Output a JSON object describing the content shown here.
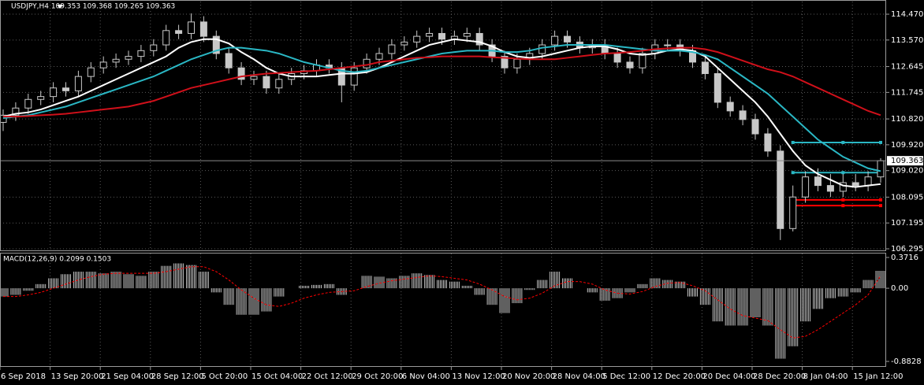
{
  "chart_data": [
    {
      "type": "candlestick",
      "title": "USDJPY,H4  109.353 109.368 109.265 109.363",
      "categories": [
        "6 Sep 2018",
        null,
        null,
        null,
        "13 Sep 20:00",
        null,
        null,
        null,
        "21 Sep 04:00",
        null,
        null,
        null,
        "28 Sep 12:00",
        null,
        null,
        null,
        "5 Oct 20:00",
        null,
        null,
        null,
        "15 Oct 04:00",
        null,
        null,
        null,
        "22 Oct 12:00",
        null,
        null,
        null,
        "29 Oct 20:00",
        null,
        null,
        null,
        "6 Nov 04:00",
        null,
        null,
        null,
        "13 Nov 12:00",
        null,
        null,
        null,
        "20 Nov 20:00",
        null,
        null,
        null,
        "28 Nov 04:00",
        null,
        null,
        null,
        "5 Dec 12:00",
        null,
        null,
        null,
        "12 Dec 20:00",
        null,
        null,
        null,
        "20 Dec 04:00",
        null,
        null,
        null,
        "28 Dec 20:00",
        null,
        null,
        null,
        "8 Jan 04:00",
        null,
        null,
        null,
        "15 Jan 12:00",
        null,
        null
      ],
      "open": [
        110.7,
        110.95,
        111.2,
        111.5,
        111.6,
        111.9,
        111.8,
        112.3,
        112.6,
        112.8,
        112.9,
        113.0,
        113.2,
        113.4,
        113.9,
        113.8,
        114.2,
        113.7,
        113.1,
        112.6,
        112.2,
        112.3,
        111.9,
        112.2,
        112.4,
        112.5,
        112.7,
        112.6,
        112.0,
        112.6,
        112.9,
        113.1,
        113.4,
        113.5,
        113.7,
        113.8,
        113.6,
        113.7,
        113.8,
        113.4,
        113.0,
        112.6,
        112.9,
        113.1,
        113.4,
        113.7,
        113.5,
        113.3,
        113.4,
        113.1,
        112.8,
        112.6,
        113.1,
        113.4,
        113.4,
        113.2,
        112.8,
        112.4,
        111.4,
        111.1,
        110.8,
        110.3,
        109.7,
        107.0,
        108.1,
        108.8,
        108.5,
        108.3,
        108.6,
        108.5,
        108.8
      ],
      "high": [
        111.15,
        111.4,
        111.7,
        111.8,
        112.1,
        112.1,
        112.5,
        112.8,
        113.0,
        113.1,
        113.2,
        113.4,
        113.6,
        114.1,
        114.1,
        114.5,
        114.4,
        113.9,
        113.3,
        112.8,
        112.5,
        112.5,
        112.4,
        112.6,
        112.7,
        112.9,
        112.9,
        112.8,
        112.8,
        113.1,
        113.3,
        113.6,
        113.7,
        113.9,
        114.0,
        114.0,
        113.9,
        114.0,
        114.0,
        113.6,
        113.2,
        113.1,
        113.3,
        113.6,
        113.9,
        113.9,
        113.7,
        113.6,
        113.6,
        113.3,
        113.0,
        113.3,
        113.6,
        113.6,
        113.6,
        113.4,
        113.0,
        112.6,
        111.6,
        111.3,
        111.0,
        110.5,
        109.9,
        108.5,
        109.0,
        109.1,
        108.9,
        108.9,
        108.9,
        109.0,
        109.45
      ],
      "low": [
        110.4,
        110.75,
        111.0,
        111.3,
        111.4,
        111.6,
        111.6,
        112.1,
        112.4,
        112.6,
        112.7,
        112.8,
        113.0,
        113.2,
        113.6,
        113.6,
        113.5,
        112.9,
        112.4,
        112.0,
        112.0,
        111.7,
        111.7,
        112.0,
        112.2,
        112.3,
        112.4,
        111.4,
        111.8,
        112.4,
        112.7,
        112.9,
        113.2,
        113.3,
        113.5,
        113.4,
        113.4,
        113.5,
        113.2,
        112.8,
        112.4,
        112.4,
        112.7,
        112.9,
        113.2,
        113.3,
        113.1,
        113.1,
        112.9,
        112.6,
        112.4,
        112.4,
        112.9,
        113.2,
        113.0,
        112.6,
        112.2,
        111.2,
        110.9,
        110.6,
        110.1,
        109.5,
        106.6,
        106.9,
        107.9,
        108.3,
        108.1,
        108.1,
        108.3,
        108.3,
        108.6
      ],
      "close": [
        110.95,
        111.2,
        111.5,
        111.6,
        111.9,
        111.8,
        112.3,
        112.6,
        112.8,
        112.9,
        113.0,
        113.2,
        113.4,
        113.9,
        113.8,
        114.2,
        113.7,
        113.1,
        112.6,
        112.2,
        112.3,
        111.9,
        112.2,
        112.4,
        112.5,
        112.7,
        112.6,
        112.0,
        112.6,
        112.9,
        113.1,
        113.4,
        113.5,
        113.7,
        113.8,
        113.6,
        113.7,
        113.8,
        113.4,
        113.0,
        112.6,
        112.9,
        113.1,
        113.4,
        113.7,
        113.5,
        113.3,
        113.4,
        113.1,
        112.8,
        112.6,
        113.1,
        113.4,
        113.4,
        113.2,
        112.8,
        112.4,
        111.4,
        111.1,
        110.8,
        110.3,
        109.7,
        107.0,
        108.1,
        108.8,
        108.5,
        108.3,
        108.6,
        108.5,
        108.8,
        109.363
      ],
      "candle_color": "#c8c8c8",
      "series": [
        {
          "color": "#ffffff",
          "values": [
            110.9,
            111.0,
            111.05,
            111.15,
            111.3,
            111.45,
            111.6,
            111.8,
            112.0,
            112.2,
            112.4,
            112.6,
            112.8,
            113.0,
            113.3,
            113.5,
            113.6,
            113.6,
            113.45,
            113.15,
            112.9,
            112.6,
            112.4,
            112.3,
            112.3,
            112.3,
            112.35,
            112.4,
            112.4,
            112.45,
            112.6,
            112.8,
            113.0,
            113.2,
            113.4,
            113.5,
            113.6,
            113.55,
            113.5,
            113.35,
            113.15,
            113.0,
            112.95,
            113.0,
            113.1,
            113.2,
            113.3,
            113.35,
            113.35,
            113.25,
            113.1,
            113.05,
            113.1,
            113.2,
            113.25,
            113.2,
            113.0,
            112.6,
            112.2,
            111.8,
            111.4,
            110.9,
            110.3,
            109.7,
            109.2,
            108.9,
            108.7,
            108.5,
            108.45,
            108.5,
            108.55
          ]
        },
        {
          "color": "#2ab7c4",
          "values": [
            110.85,
            110.9,
            110.95,
            111.05,
            111.15,
            111.25,
            111.4,
            111.55,
            111.7,
            111.85,
            112.0,
            112.15,
            112.3,
            112.5,
            112.7,
            112.9,
            113.05,
            113.2,
            113.3,
            113.3,
            113.25,
            113.2,
            113.1,
            112.95,
            112.8,
            112.7,
            112.6,
            112.5,
            112.45,
            112.5,
            112.6,
            112.7,
            112.8,
            112.9,
            113.0,
            113.1,
            113.15,
            113.2,
            113.2,
            113.2,
            113.15,
            113.15,
            113.2,
            113.3,
            113.35,
            113.4,
            113.4,
            113.4,
            113.4,
            113.35,
            113.3,
            113.25,
            113.2,
            113.2,
            113.2,
            113.15,
            113.05,
            112.9,
            112.6,
            112.3,
            112.0,
            111.7,
            111.3,
            110.9,
            110.5,
            110.1,
            109.8,
            109.5,
            109.3,
            109.1,
            109.0
          ]
        },
        {
          "color": "#d0101a",
          "values": [
            110.9,
            110.9,
            110.92,
            110.95,
            110.97,
            111.0,
            111.05,
            111.1,
            111.15,
            111.2,
            111.25,
            111.35,
            111.45,
            111.6,
            111.75,
            111.9,
            112.0,
            112.1,
            112.2,
            112.3,
            112.35,
            112.4,
            112.42,
            112.45,
            112.48,
            112.5,
            112.55,
            112.6,
            112.65,
            112.7,
            112.8,
            112.85,
            112.9,
            112.95,
            112.97,
            113.0,
            113.0,
            113.0,
            113.0,
            112.97,
            112.95,
            112.92,
            112.9,
            112.9,
            112.9,
            112.95,
            113.0,
            113.05,
            113.1,
            113.12,
            113.15,
            113.2,
            113.25,
            113.28,
            113.3,
            113.3,
            113.25,
            113.15,
            113.0,
            112.85,
            112.7,
            112.55,
            112.45,
            112.3,
            112.1,
            111.9,
            111.7,
            111.5,
            111.3,
            111.1,
            110.95
          ]
        }
      ],
      "levels": [
        {
          "value": 110.0,
          "color": "#2ab7c4"
        },
        {
          "value": 108.95,
          "color": "#2ab7c4"
        },
        {
          "value": 108.0,
          "color": "#ff0000"
        },
        {
          "value": 107.8,
          "color": "#ff0000"
        }
      ],
      "ylim": [
        106.24,
        114.91
      ],
      "yticks": [
        {
          "value": 114.47,
          "label": "114.470"
        },
        {
          "value": 113.57,
          "label": "113.570"
        },
        112.645,
        111.745,
        {
          "value": 110.82,
          "label": "110.820"
        },
        {
          "value": 109.92,
          "label": "109.920"
        },
        {
          "value": 109.02,
          "label": "109.020"
        },
        108.095,
        107.195,
        106.295
      ],
      "grid": true
    },
    {
      "type": "bar",
      "title": "MACD(12,26,9) 0.2099 0.1503",
      "color": "#c0c0c0",
      "values": [
        -0.1,
        -0.08,
        -0.03,
        0.05,
        0.12,
        0.17,
        0.2,
        0.2,
        0.18,
        0.2,
        0.17,
        0.15,
        0.2,
        0.27,
        0.3,
        0.28,
        0.2,
        -0.05,
        -0.2,
        -0.32,
        -0.32,
        -0.28,
        -0.1,
        0.0,
        0.03,
        0.04,
        0.05,
        -0.08,
        0.0,
        0.15,
        0.14,
        0.12,
        0.15,
        0.18,
        0.16,
        0.1,
        0.08,
        0.03,
        -0.08,
        -0.2,
        -0.3,
        -0.18,
        -0.02,
        0.1,
        0.2,
        0.12,
        0.0,
        -0.05,
        -0.15,
        -0.12,
        -0.05,
        0.05,
        0.12,
        0.1,
        0.08,
        -0.1,
        -0.2,
        -0.4,
        -0.45,
        -0.45,
        -0.35,
        -0.45,
        -0.85,
        -0.7,
        -0.4,
        -0.25,
        -0.12,
        -0.1,
        -0.05,
        0.1,
        0.2099
      ],
      "signal": [
        -0.1,
        -0.1,
        -0.08,
        -0.05,
        0.0,
        0.05,
        0.1,
        0.14,
        0.17,
        0.18,
        0.18,
        0.18,
        0.18,
        0.2,
        0.23,
        0.26,
        0.26,
        0.2,
        0.1,
        -0.02,
        -0.12,
        -0.2,
        -0.22,
        -0.18,
        -0.12,
        -0.08,
        -0.05,
        -0.04,
        -0.03,
        0.02,
        0.06,
        0.09,
        0.11,
        0.13,
        0.15,
        0.14,
        0.12,
        0.1,
        0.05,
        -0.02,
        -0.1,
        -0.14,
        -0.12,
        -0.06,
        0.03,
        0.08,
        0.08,
        0.05,
        -0.02,
        -0.06,
        -0.07,
        -0.04,
        0.02,
        0.06,
        0.07,
        0.03,
        -0.03,
        -0.14,
        -0.25,
        -0.33,
        -0.36,
        -0.39,
        -0.5,
        -0.6,
        -0.58,
        -0.5,
        -0.4,
        -0.3,
        -0.2,
        -0.08,
        0.1503
      ],
      "signal_color": "#ff0000",
      "ylim": [
        -0.93,
        0.4
      ],
      "yticks": [
        0.3716,
        {
          "value": 0,
          "label": "0.00"
        },
        -0.8828
      ]
    }
  ]
}
